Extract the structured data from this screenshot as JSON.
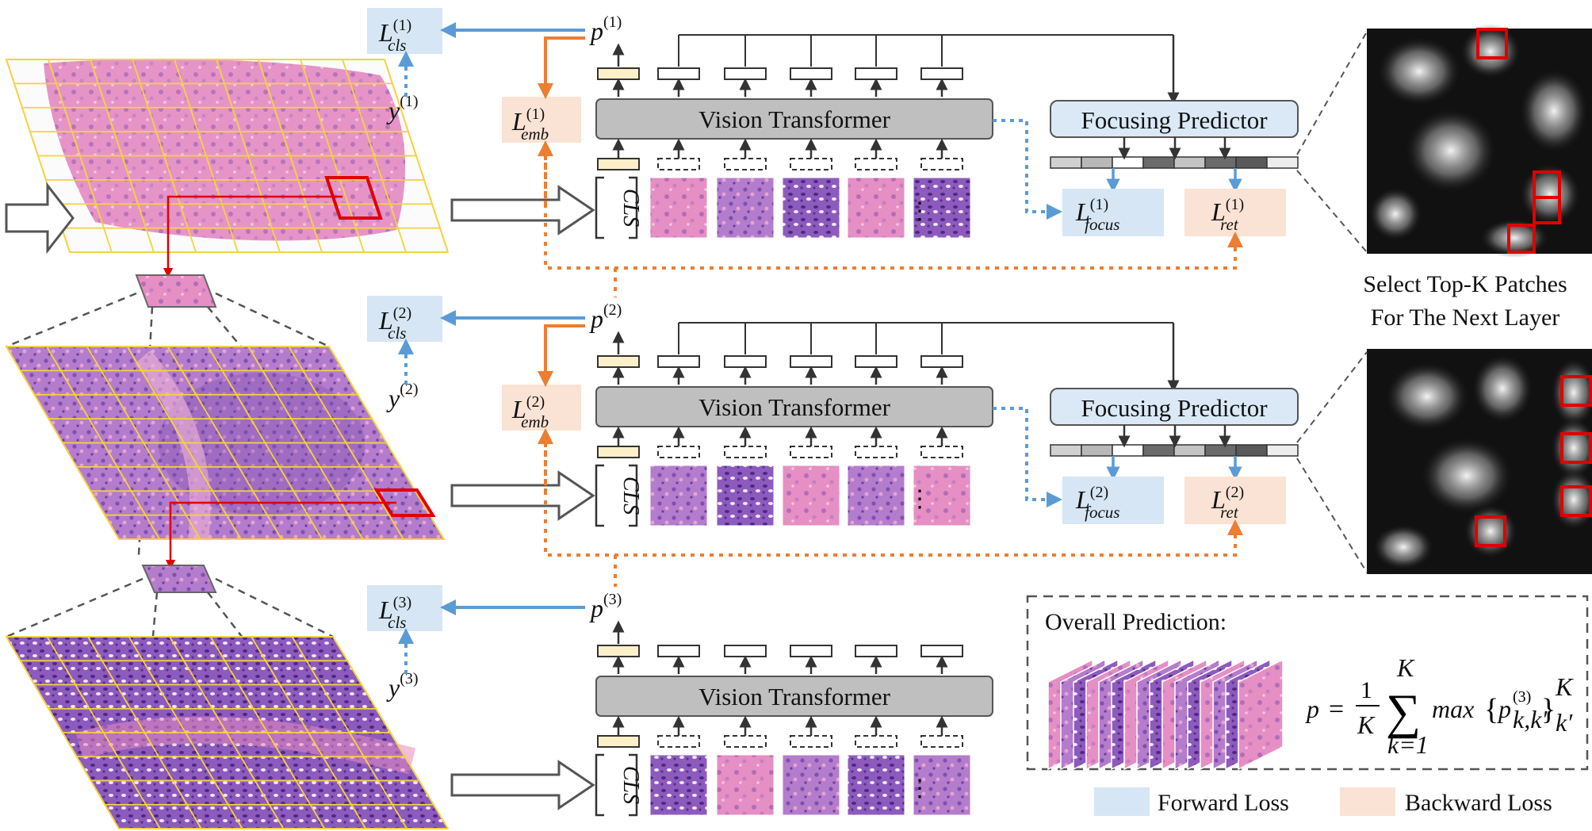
{
  "colors": {
    "forward_loss_bg": "#d6e6f4",
    "backward_loss_bg": "#fae3d4",
    "forward_arrow": "#5b9bd5",
    "backward_arrow": "#ed7d31",
    "vt_fill": "#bfbfbf",
    "fp_fill": "#dbe9f6",
    "cls_token": "#fdf0c8",
    "highlight": "#e00000",
    "grid_line": "#f6d23c"
  },
  "layers": [
    {
      "vt_label": "Vision Transformer",
      "prob": {
        "base": "p",
        "sup": "(1)"
      },
      "label": {
        "base": "y",
        "sup": "(1)"
      },
      "cls_loss": {
        "base": "L",
        "sup": "(1)",
        "sub": "cls"
      },
      "emb_loss": {
        "base": "L",
        "sup": "(1)",
        "sub": "emb"
      },
      "focus_loss": {
        "base": "L",
        "sup": "(1)",
        "sub": "focus"
      },
      "ret_loss": {
        "base": "L",
        "sup": "(1)",
        "sub": "ret"
      },
      "fp_label": "Focusing Predictor",
      "cls_text": "CLS",
      "ellipsis": "⋮"
    },
    {
      "vt_label": "Vision Transformer",
      "prob": {
        "base": "p",
        "sup": "(2)"
      },
      "label": {
        "base": "y",
        "sup": "(2)"
      },
      "cls_loss": {
        "base": "L",
        "sup": "(2)",
        "sub": "cls"
      },
      "emb_loss": {
        "base": "L",
        "sup": "(2)",
        "sub": "emb"
      },
      "focus_loss": {
        "base": "L",
        "sup": "(2)",
        "sub": "focus"
      },
      "ret_loss": {
        "base": "L",
        "sup": "(2)",
        "sub": "ret"
      },
      "fp_label": "Focusing Predictor",
      "cls_text": "CLS",
      "ellipsis": "⋮"
    },
    {
      "vt_label": "Vision Transformer",
      "prob": {
        "base": "p",
        "sup": "(3)"
      },
      "label": {
        "base": "y",
        "sup": "(3)"
      },
      "cls_loss": {
        "base": "L",
        "sup": "(3)",
        "sub": "cls"
      },
      "cls_text": "CLS",
      "ellipsis": "⋮"
    }
  ],
  "select_caption": {
    "line1": "Select Top-K Patches",
    "line2": "For The Next Layer"
  },
  "overall": {
    "title": "Overall Prediction:",
    "formula": {
      "lhs": "p",
      "equals": "=",
      "frac_num": "1",
      "frac_den": "K",
      "sum_upper": "K",
      "sum_lower": "k=1",
      "sum_symbol": "∑",
      "func": "max",
      "inner_base": "p",
      "inner_sup": "(3)",
      "inner_sub": "k,k′",
      "outer_sup": "K",
      "outer_sub": "k′"
    }
  },
  "legend": {
    "forward": "Forward Loss",
    "backward": "Backward Loss"
  }
}
